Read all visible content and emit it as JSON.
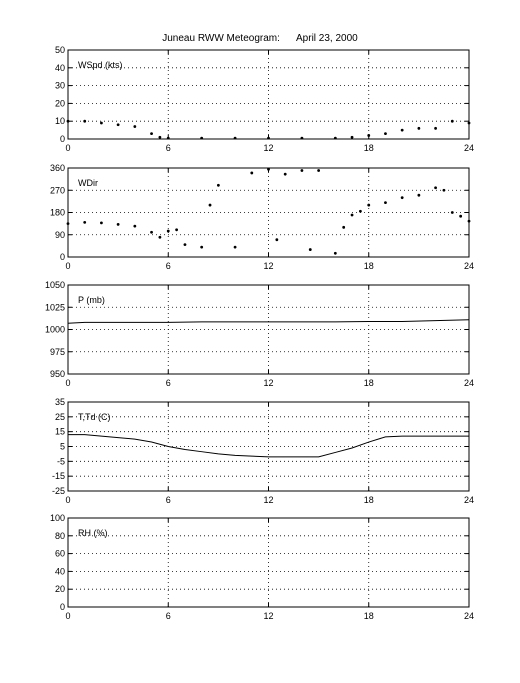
{
  "figure": {
    "title": "Juneau RWW Meteogram:",
    "date": "April 23, 2000"
  },
  "chart_data": [
    {
      "type": "scatter",
      "panel_label": "WSpd (kts)",
      "xlim": [
        0,
        24
      ],
      "ylim": [
        0,
        50
      ],
      "xticks": [
        "0",
        "6",
        "12",
        "18",
        "24"
      ],
      "yticks": [
        "0",
        "10",
        "20",
        "30",
        "40",
        "50"
      ],
      "grid": true,
      "x": [
        0,
        1,
        2,
        3,
        4,
        5,
        5.5,
        6,
        8,
        10,
        12,
        14,
        16,
        17,
        18,
        19,
        20,
        21,
        22,
        23,
        24
      ],
      "y": [
        10,
        10,
        9,
        8,
        7,
        3,
        1,
        0.5,
        0.5,
        0.5,
        0.5,
        0.5,
        0.5,
        1,
        2,
        3,
        5,
        6,
        6,
        10,
        9
      ]
    },
    {
      "type": "scatter",
      "panel_label": "WDir",
      "xlim": [
        0,
        24
      ],
      "ylim": [
        0,
        360
      ],
      "xticks": [
        "0",
        "6",
        "12",
        "18",
        "24"
      ],
      "yticks": [
        "0",
        "90",
        "180",
        "270",
        "360"
      ],
      "grid": true,
      "x": [
        0,
        1,
        2,
        3,
        4,
        5,
        5.5,
        6,
        6.5,
        7,
        8,
        8.5,
        9,
        10,
        11,
        12,
        12.5,
        13,
        14,
        14.5,
        15,
        16,
        16.5,
        17,
        17.5,
        18,
        19,
        20,
        21,
        22,
        22.5,
        23,
        23.5,
        24
      ],
      "y": [
        135,
        140,
        138,
        132,
        125,
        100,
        80,
        105,
        110,
        50,
        40,
        210,
        290,
        40,
        340,
        355,
        70,
        335,
        350,
        30,
        350,
        15,
        120,
        170,
        185,
        210,
        220,
        240,
        250,
        280,
        270,
        180,
        165,
        145
      ]
    },
    {
      "type": "line",
      "panel_label": "P (mb)",
      "xlim": [
        0,
        24
      ],
      "ylim": [
        950,
        1050
      ],
      "xticks": [
        "0",
        "6",
        "12",
        "18",
        "24"
      ],
      "yticks": [
        "950",
        "975",
        "1000",
        "1025",
        "1050"
      ],
      "grid": true,
      "x": [
        0,
        1,
        2,
        4,
        6,
        8,
        10,
        12,
        14,
        16,
        18,
        20,
        22,
        24
      ],
      "y": [
        1007,
        1008,
        1008,
        1008,
        1008,
        1008.5,
        1008.5,
        1008.5,
        1008.5,
        1008.5,
        1009,
        1009,
        1010,
        1011
      ]
    },
    {
      "type": "line",
      "panel_label": "T,Td (C)",
      "xlim": [
        0,
        24
      ],
      "ylim": [
        -25,
        35
      ],
      "xticks": [
        "0",
        "6",
        "12",
        "18",
        "24"
      ],
      "yticks": [
        "-25",
        "-15",
        "-5",
        "5",
        "15",
        "25",
        "35"
      ],
      "grid": true,
      "x": [
        0,
        1,
        2,
        3,
        4,
        5,
        6,
        7,
        8,
        9,
        10,
        11,
        12,
        13,
        14,
        15,
        16,
        17,
        18,
        19,
        20,
        21,
        22,
        23,
        24
      ],
      "y": [
        13,
        13,
        12,
        11,
        10,
        8,
        5,
        3,
        1.5,
        0,
        -1,
        -1.5,
        -2,
        -2,
        -2,
        -2,
        1,
        4,
        8,
        11.5,
        12,
        12,
        12,
        12,
        12
      ]
    },
    {
      "type": "line",
      "panel_label": "RH (%)",
      "xlim": [
        0,
        24
      ],
      "ylim": [
        0,
        100
      ],
      "xticks": [
        "0",
        "6",
        "12",
        "18",
        "24"
      ],
      "yticks": [
        "0",
        "20",
        "40",
        "60",
        "80",
        "100"
      ],
      "grid": true,
      "x": [],
      "y": []
    }
  ]
}
